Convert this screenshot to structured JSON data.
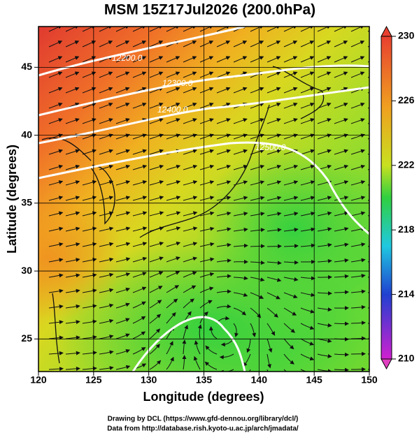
{
  "title": "MSM 15Z17Jul2026 (200.0hPa)",
  "x_axis": {
    "label": "Longitude (degrees)",
    "lim": [
      120,
      150
    ],
    "ticks": [
      120,
      125,
      130,
      135,
      140,
      145,
      150
    ]
  },
  "y_axis": {
    "label": "Latitude  (degrees)",
    "lim": [
      22.6,
      48
    ],
    "ticks": [
      25,
      30,
      35,
      40,
      45
    ]
  },
  "colorbar": {
    "lim": [
      210,
      230
    ],
    "ticks": [
      210,
      214,
      218,
      222,
      226,
      230
    ]
  },
  "contour_labels": [
    "12200.0",
    "12300.0",
    "12400.0",
    "12500.0"
  ],
  "footer": [
    "Drawing by DCL (https://www.gfd-dennou.org/library/dcl/)",
    "Data from http://database.rish.kyoto-u.ac.jp/arch/jmadata/"
  ]
}
